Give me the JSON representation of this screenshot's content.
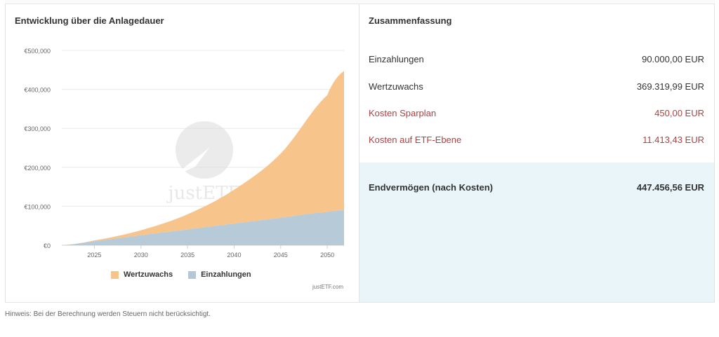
{
  "chart_panel": {
    "title": "Entwicklung über die Anlagedauer",
    "legend": [
      {
        "label": "Wertzuwachs",
        "color": "#f7c58b"
      },
      {
        "label": "Einzahlungen",
        "color": "#b3c7d6"
      }
    ],
    "watermark": "justETF",
    "credit": "justETF.com"
  },
  "summary": {
    "title": "Zusammenfassung",
    "rows": [
      {
        "label": "Einzahlungen",
        "value": "90.000,00 EUR",
        "type": "normal"
      },
      {
        "label": "Wertzuwachs",
        "value": "369.319,99 EUR",
        "type": "normal"
      },
      {
        "label": "Kosten Sparplan",
        "value": "450,00 EUR",
        "type": "cost"
      },
      {
        "label": "Kosten auf ETF-Ebene",
        "value": "11.413,43 EUR",
        "type": "cost"
      }
    ],
    "final": {
      "label": "Endvermögen (nach Kosten)",
      "value": "447.456,56 EUR"
    }
  },
  "note": "Hinweis: Bei der Berechnung werden Steuern nicht berücksichtigt.",
  "colors": {
    "cost": "#b04040",
    "final_bg": "#eaf5fa",
    "area_growth": "#f7c58b",
    "area_deposits": "#b3c7d6"
  },
  "chart_data": {
    "type": "area",
    "stacked": true,
    "x": [
      2021.5,
      2025,
      2030,
      2035,
      2040,
      2045,
      2050,
      2051.8
    ],
    "series": [
      {
        "name": "Einzahlungen",
        "values": [
          0,
          10500,
          25500,
          40500,
          55500,
          70500,
          85500,
          90000
        ]
      },
      {
        "name": "Wertzuwachs",
        "values": [
          0,
          2000,
          13000,
          39000,
          87000,
          165000,
          300000,
          357500
        ]
      }
    ],
    "y_ticks": [
      0,
      100000,
      200000,
      300000,
      400000,
      500000
    ],
    "y_tick_labels": [
      "€0",
      "€100,000",
      "€200,000",
      "€300,000",
      "€400,000",
      "€500,000"
    ],
    "x_ticks": [
      2025,
      2030,
      2035,
      2040,
      2045,
      2050
    ],
    "x_tick_labels": [
      "2025",
      "2030",
      "2035",
      "2040",
      "2045",
      "2050"
    ],
    "ylim": [
      0,
      500000
    ],
    "xlim": [
      2021.5,
      2051.8
    ],
    "grid": "horizontal",
    "legend_position": "bottom"
  }
}
